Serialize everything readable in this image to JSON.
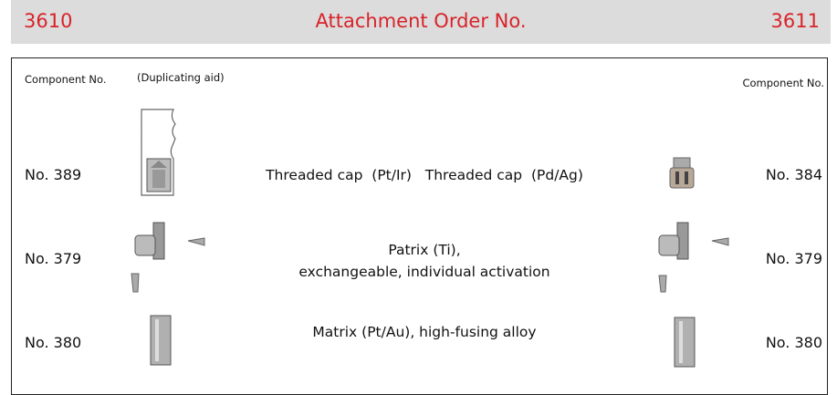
{
  "header": {
    "left": "3610",
    "title": "Attachment Order No.",
    "right": "3611"
  },
  "columns": {
    "left": "Component No.",
    "aid": "(Duplicating aid)",
    "right": "Component No."
  },
  "rows": [
    {
      "left": "No. 389",
      "description": [
        "Threaded cap  (Pt/Ir)   Threaded cap  (Pd/Ag)"
      ],
      "right": "No. 384"
    },
    {
      "left": "No. 379",
      "description": [
        "Patrix (Ti),",
        "exchangeable, individual activation"
      ],
      "right": "No. 379"
    },
    {
      "left": "No. 380",
      "description": [
        "Matrix (Pt/Au), high-fusing alloy"
      ],
      "right": "No. 380"
    }
  ]
}
